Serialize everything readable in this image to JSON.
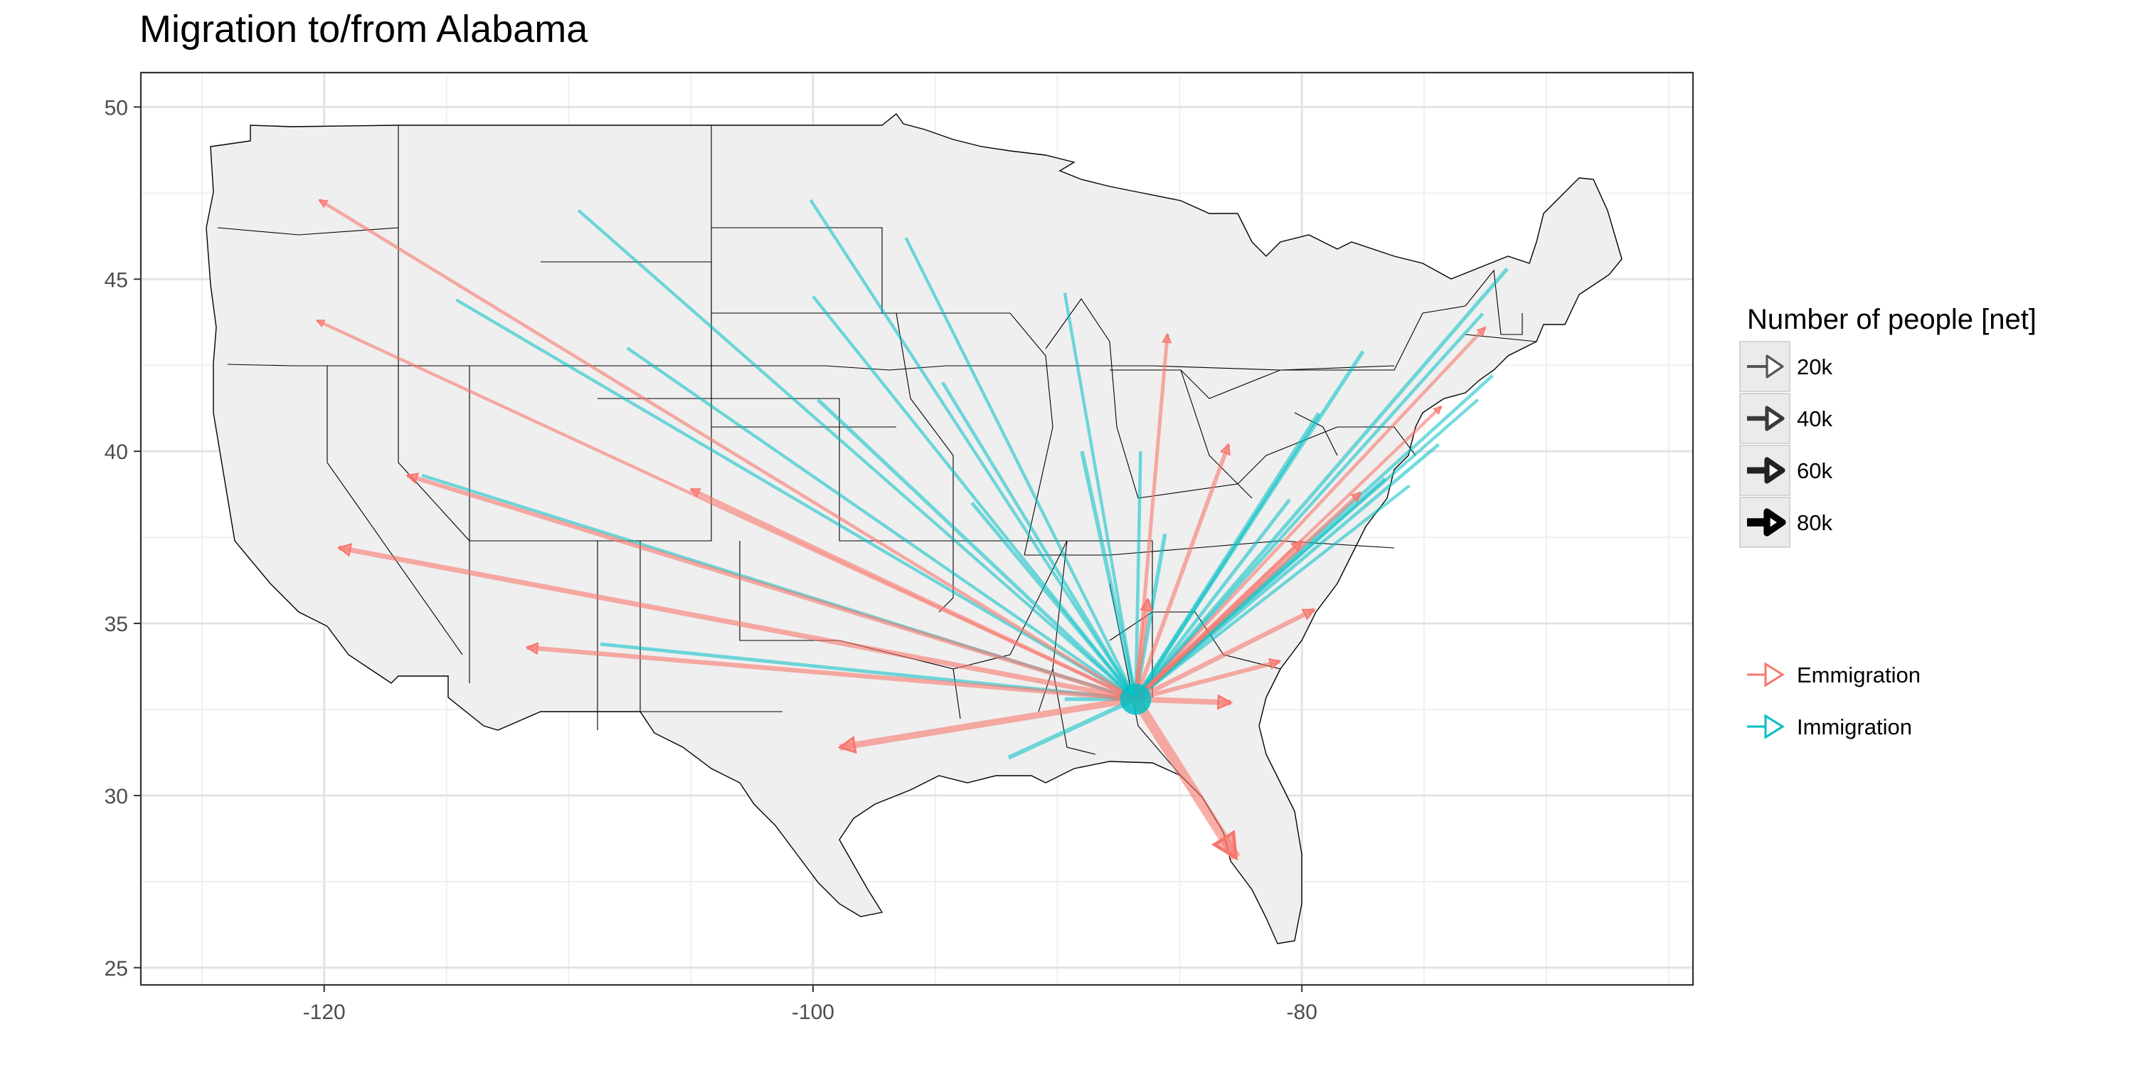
{
  "chart_data": {
    "type": "flow-map",
    "title": "Migration to/from Alabama",
    "xlabel": "",
    "ylabel": "",
    "xlim": [
      -127.5,
      -64
    ],
    "ylim": [
      24.5,
      51
    ],
    "x_ticks": [
      -120,
      -100,
      -80
    ],
    "x_tick_labels": [
      "-120",
      "-100",
      "-80"
    ],
    "y_ticks": [
      25,
      30,
      35,
      40,
      45,
      50
    ],
    "y_tick_labels": [
      "25",
      "30",
      "35",
      "40",
      "45",
      "50"
    ],
    "grid": true,
    "legend_position": "right",
    "origin": {
      "name": "Alabama",
      "lon": -86.8,
      "lat": 32.8
    },
    "size_legend": {
      "title": "Number of people [net]",
      "entries": [
        {
          "label": "20k",
          "value": 20000,
          "color": "#555555"
        },
        {
          "label": "40k",
          "value": 40000,
          "color": "#3a3a3a"
        },
        {
          "label": "60k",
          "value": 60000,
          "color": "#222222"
        },
        {
          "label": "80k",
          "value": 80000,
          "color": "#000000"
        }
      ]
    },
    "color_legend": {
      "entries": [
        {
          "label": "Emmigration",
          "color": "#F8766D"
        },
        {
          "label": "Immigration",
          "color": "#00BFC4"
        }
      ]
    },
    "emigration": [
      {
        "lon": -120.2,
        "lat": 47.3,
        "value": 12000
      },
      {
        "lon": -120.3,
        "lat": 43.8,
        "value": 10000
      },
      {
        "lon": -116.6,
        "lat": 39.3,
        "value": 22000
      },
      {
        "lon": -119.4,
        "lat": 37.2,
        "value": 30000
      },
      {
        "lon": -111.7,
        "lat": 34.3,
        "value": 25000
      },
      {
        "lon": -105.0,
        "lat": 38.9,
        "value": 16000
      },
      {
        "lon": -98.9,
        "lat": 31.4,
        "value": 45000
      },
      {
        "lon": -85.5,
        "lat": 43.4,
        "value": 15000
      },
      {
        "lon": -83.0,
        "lat": 40.2,
        "value": 20000
      },
      {
        "lon": -86.3,
        "lat": 35.7,
        "value": 28000
      },
      {
        "lon": -82.9,
        "lat": 32.7,
        "value": 36000
      },
      {
        "lon": -80.9,
        "lat": 33.9,
        "value": 22000
      },
      {
        "lon": -79.5,
        "lat": 35.4,
        "value": 25000
      },
      {
        "lon": -80.0,
        "lat": 37.4,
        "value": 22000
      },
      {
        "lon": -77.6,
        "lat": 38.8,
        "value": 16000
      },
      {
        "lon": -74.3,
        "lat": 41.3,
        "value": 10000
      },
      {
        "lon": -72.5,
        "lat": 43.6,
        "value": 12000
      },
      {
        "lon": -82.7,
        "lat": 28.2,
        "value": 80000
      }
    ],
    "immigration": [
      {
        "lon": -109.6,
        "lat": 47.0,
        "value": 10000
      },
      {
        "lon": -114.6,
        "lat": 44.4,
        "value": 10000
      },
      {
        "lon": -107.6,
        "lat": 43.0,
        "value": 10000
      },
      {
        "lon": -116.0,
        "lat": 39.3,
        "value": 10000
      },
      {
        "lon": -108.7,
        "lat": 34.4,
        "value": 14000
      },
      {
        "lon": -100.1,
        "lat": 47.3,
        "value": 10000
      },
      {
        "lon": -100.0,
        "lat": 44.5,
        "value": 10000
      },
      {
        "lon": -99.8,
        "lat": 41.5,
        "value": 16000
      },
      {
        "lon": -96.2,
        "lat": 46.2,
        "value": 10000
      },
      {
        "lon": -94.7,
        "lat": 42.0,
        "value": 12000
      },
      {
        "lon": -93.5,
        "lat": 38.5,
        "value": 14000
      },
      {
        "lon": -89.7,
        "lat": 44.6,
        "value": 10000
      },
      {
        "lon": -89.0,
        "lat": 40.0,
        "value": 20000
      },
      {
        "lon": -86.6,
        "lat": 40.0,
        "value": 12000
      },
      {
        "lon": -85.6,
        "lat": 37.6,
        "value": 18000
      },
      {
        "lon": -92.0,
        "lat": 31.1,
        "value": 22000
      },
      {
        "lon": -89.7,
        "lat": 32.8,
        "value": 16000
      },
      {
        "lon": -79.3,
        "lat": 41.1,
        "value": 25000
      },
      {
        "lon": -77.5,
        "lat": 42.9,
        "value": 18000
      },
      {
        "lon": -71.6,
        "lat": 45.3,
        "value": 16000
      },
      {
        "lon": -72.6,
        "lat": 44.0,
        "value": 12000
      },
      {
        "lon": -72.2,
        "lat": 42.2,
        "value": 12000
      },
      {
        "lon": -72.8,
        "lat": 41.5,
        "value": 10000
      },
      {
        "lon": -74.4,
        "lat": 40.2,
        "value": 14000
      },
      {
        "lon": -75.6,
        "lat": 39.0,
        "value": 10000
      },
      {
        "lon": -76.6,
        "lat": 39.2,
        "value": 16000
      },
      {
        "lon": -80.5,
        "lat": 38.6,
        "value": 14000
      }
    ]
  }
}
